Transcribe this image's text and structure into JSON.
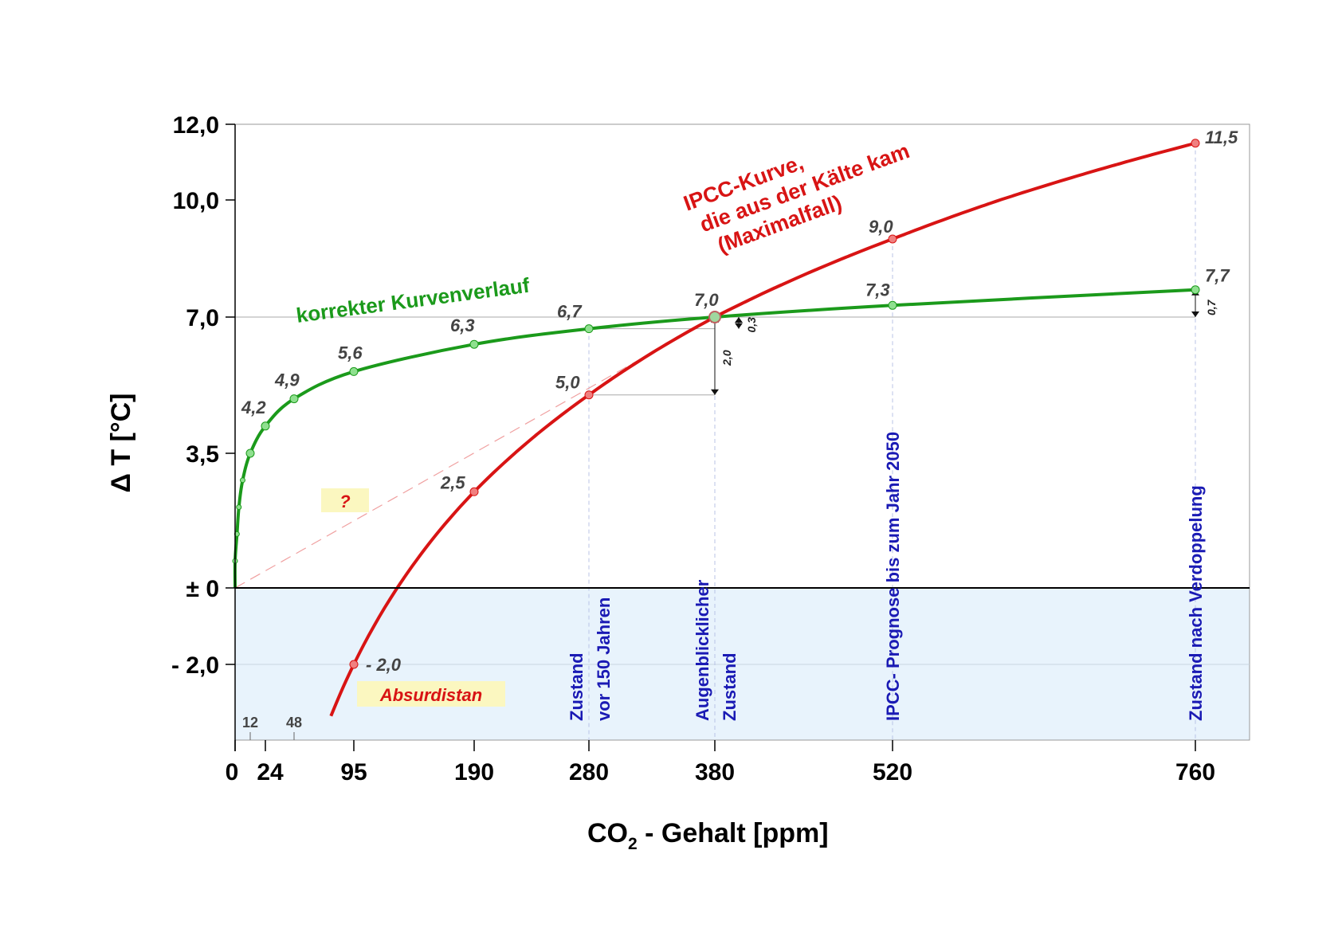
{
  "chart_data": {
    "type": "line",
    "xlabel": "CO",
    "xlabel_sub": "2",
    "xlabel_rest": " - Gehalt [ppm]",
    "ylabel": "Δ T [°C]",
    "xlim": [
      0,
      840
    ],
    "ylim": [
      -4.0,
      12.0
    ],
    "x_ticks": [
      {
        "value": 0,
        "label": "0"
      },
      {
        "value": 24,
        "label": "24"
      },
      {
        "value": 95,
        "label": "95"
      },
      {
        "value": 190,
        "label": "190"
      },
      {
        "value": 280,
        "label": "280"
      },
      {
        "value": 380,
        "label": "380"
      },
      {
        "value": 520,
        "label": "520"
      },
      {
        "value": 760,
        "label": "760"
      }
    ],
    "x_ticks_small": [
      {
        "value": 12,
        "label": "12"
      },
      {
        "value": 48,
        "label": "48"
      }
    ],
    "y_ticks": [
      {
        "value": 12.0,
        "label": "12,0"
      },
      {
        "value": 10.0,
        "label": "10,0"
      },
      {
        "value": 7.0,
        "label": "7,0"
      },
      {
        "value": 3.5,
        "label": "3,5"
      },
      {
        "value": 0.0,
        "label": "± 0"
      },
      {
        "value": -2.0,
        "label": "- 2,0"
      }
    ],
    "series": [
      {
        "name": "korrekter Kurvenverlauf",
        "color": "#1b9a1b",
        "x": [
          0,
          1.5,
          3,
          6,
          12,
          24,
          48,
          95,
          190,
          280,
          380,
          520,
          760
        ],
        "y": [
          0.7,
          1.4,
          2.1,
          2.8,
          3.5,
          4.2,
          4.9,
          5.6,
          6.3,
          6.7,
          7.0,
          7.3,
          7.7
        ],
        "labels": [
          {
            "x": 24,
            "y": 4.2,
            "text": "4,2"
          },
          {
            "x": 48,
            "y": 4.9,
            "text": "4,9"
          },
          {
            "x": 95,
            "y": 5.6,
            "text": "5,6"
          },
          {
            "x": 190,
            "y": 6.3,
            "text": "6,3"
          },
          {
            "x": 280,
            "y": 6.7,
            "text": "6,7"
          },
          {
            "x": 380,
            "y": 7.0,
            "text": "7,0"
          },
          {
            "x": 520,
            "y": 7.3,
            "text": "7,3"
          },
          {
            "x": 760,
            "y": 7.7,
            "text": "7,7"
          }
        ]
      },
      {
        "name": "IPCC-Kurve, die aus der Kälte kam (Maximalfall)",
        "color": "#d81414",
        "x": [
          95,
          190,
          280,
          380,
          520,
          760
        ],
        "y": [
          -2.0,
          2.5,
          5.0,
          7.0,
          9.0,
          11.5
        ],
        "extend_to_x": 77,
        "labels": [
          {
            "x": 95,
            "y": -2.0,
            "text": "- 2,0"
          },
          {
            "x": 190,
            "y": 2.5,
            "text": "2,5"
          },
          {
            "x": 280,
            "y": 5.0,
            "text": "5,0"
          },
          {
            "x": 520,
            "y": 9.0,
            "text": "9,0"
          },
          {
            "x": 760,
            "y": 11.5,
            "text": "11,5"
          }
        ]
      }
    ],
    "dashed_line": {
      "from": [
        0,
        0.0
      ],
      "to": [
        380,
        7.0
      ],
      "color": "#f0a0a0"
    },
    "difference_markers": [
      {
        "x": 380,
        "y_from": 5.0,
        "y_to": 7.0,
        "text": "2,0"
      },
      {
        "x": 380,
        "y_from": 6.7,
        "y_to": 7.0,
        "text": "0,3"
      },
      {
        "x": 760,
        "y_from": 7.0,
        "y_to": 7.7,
        "text": "0,7"
      }
    ],
    "annotations": {
      "green_title": "korrekter Kurvenverlauf",
      "red_title_lines": [
        "IPCC-Kurve,",
        "die aus der Kälte kam",
        "(Maximalfall)"
      ],
      "question_box": "?",
      "absurdistan_box": "Absurdistan",
      "vertical_labels": [
        {
          "x": 280,
          "lines": [
            "Zustand",
            "vor 150 Jahren"
          ]
        },
        {
          "x": 380,
          "lines": [
            "Augenblicklicher",
            "Zustand"
          ]
        },
        {
          "x": 520,
          "lines": [
            "IPCC- Prognose bis zum Jahr 2050"
          ]
        },
        {
          "x": 760,
          "lines": [
            "Zustand nach Verdoppelung"
          ]
        }
      ]
    },
    "colors": {
      "green": "#1b9a1b",
      "green_marker": "#8fe08f",
      "red": "#d81414",
      "red_marker": "#f08080",
      "negative_area": "#e8f3fc",
      "label_box": "#fbf7c0",
      "vertical_text": "#1a1ab4"
    },
    "grid": false,
    "legend": "none"
  }
}
